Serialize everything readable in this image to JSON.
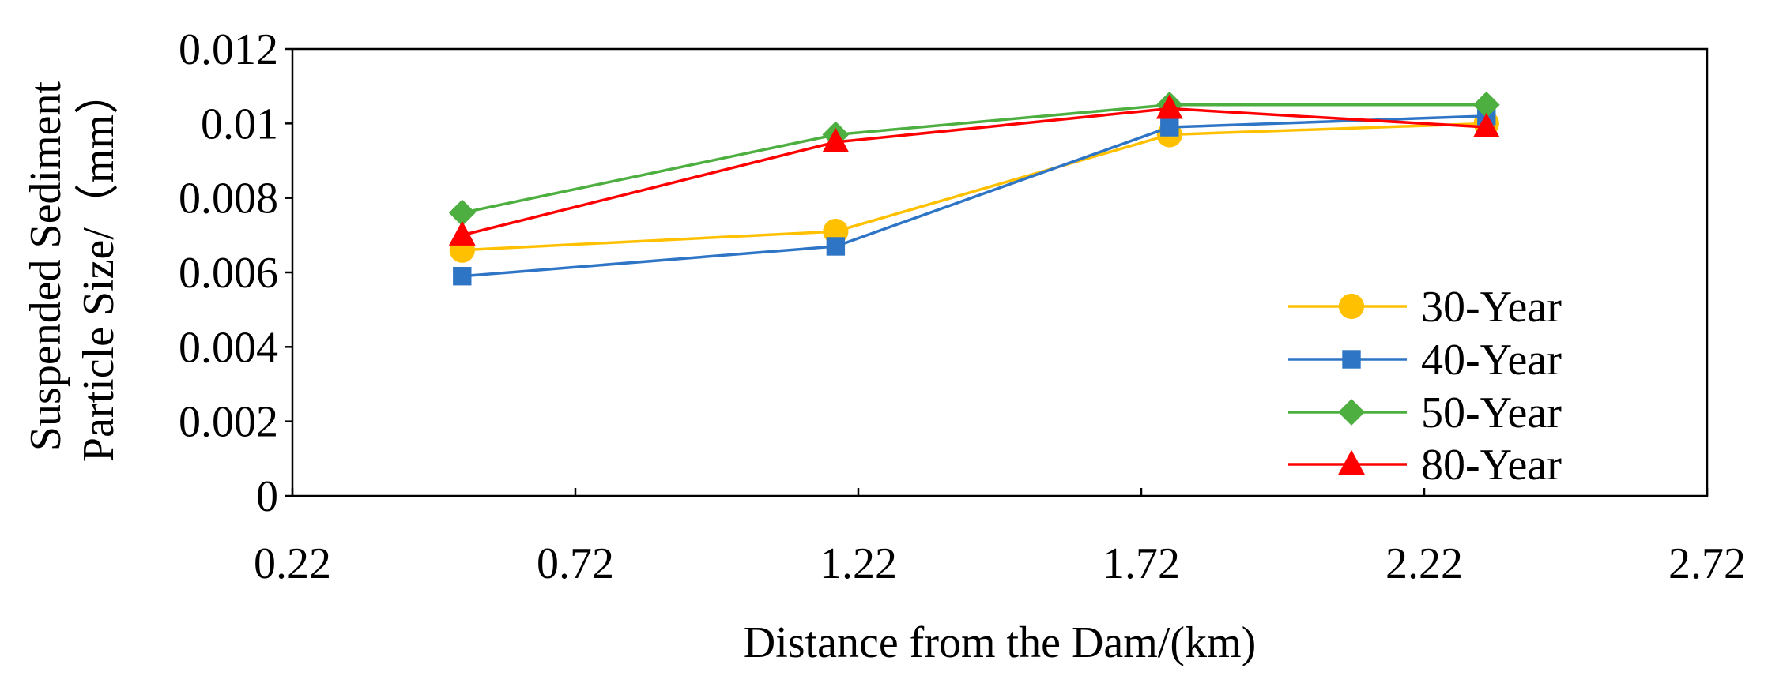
{
  "chart_data": {
    "type": "line",
    "title": "",
    "xlabel": "Distance from the Dam/(km)",
    "ylabel_lines": [
      "Suspended Sediment",
      "Particle Size/（mm）"
    ],
    "xlim": [
      0.22,
      2.72
    ],
    "ylim": [
      0,
      0.012
    ],
    "x_ticks": [
      "0.22",
      "0.72",
      "1.22",
      "1.72",
      "2.22",
      "2.72"
    ],
    "x_tick_values": [
      0.22,
      0.72,
      1.22,
      1.72,
      2.22,
      2.72
    ],
    "y_ticks": [
      "0",
      "0.002",
      "0.004",
      "0.006",
      "0.008",
      "0.01",
      "0.012"
    ],
    "y_tick_values": [
      0,
      0.002,
      0.004,
      0.006,
      0.008,
      0.01,
      0.012
    ],
    "grid": false,
    "legend_position": "bottom-right",
    "x": [
      0.52,
      1.18,
      1.77,
      2.33
    ],
    "series": [
      {
        "name": "30-Year",
        "marker": "circle",
        "color": "#FFC000",
        "values": [
          0.0066,
          0.0071,
          0.0097,
          0.01
        ]
      },
      {
        "name": "40-Year",
        "marker": "square",
        "color": "#2E75C6",
        "values": [
          0.0059,
          0.0067,
          0.0099,
          0.0102
        ]
      },
      {
        "name": "50-Year",
        "marker": "diamond",
        "color": "#4CAF3F",
        "values": [
          0.0076,
          0.0097,
          0.0105,
          0.0105
        ]
      },
      {
        "name": "80-Year",
        "marker": "triangle",
        "color": "#FF0000",
        "values": [
          0.007,
          0.0095,
          0.0104,
          0.0099
        ]
      }
    ]
  }
}
